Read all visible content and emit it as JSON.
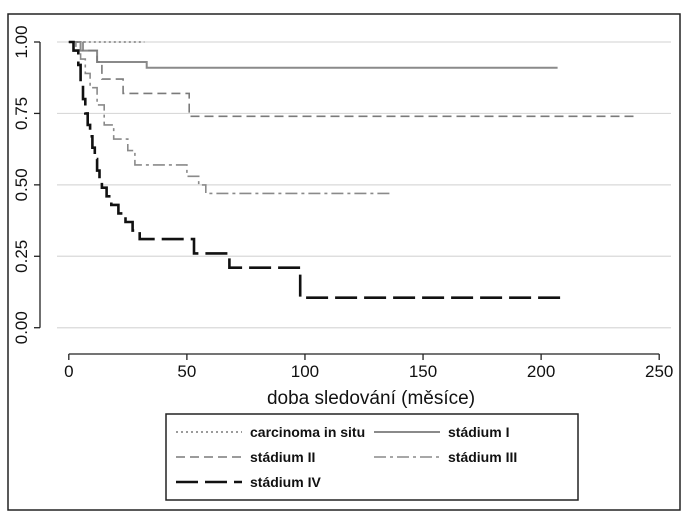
{
  "chart_data": {
    "type": "line",
    "step": true,
    "title": "",
    "xlabel": "doba sledování (měsíce)",
    "ylabel": "",
    "xlim": [
      -5,
      255
    ],
    "ylim": [
      -0.05,
      1.07
    ],
    "xticks": [
      0,
      50,
      100,
      150,
      200,
      250
    ],
    "yticks": [
      0.0,
      0.25,
      0.5,
      0.75,
      1.0
    ],
    "ytick_labels": [
      "0.00",
      "0.25",
      "0.50",
      "0.75",
      "1.00"
    ],
    "grid": "horizontal",
    "legend_position": "bottom",
    "background": "#ffffff",
    "series": [
      {
        "name": "carcinoma in situ",
        "style": "dotted",
        "color": "#9a9a9a",
        "points": [
          [
            0,
            1.0
          ],
          [
            32,
            1.0
          ]
        ]
      },
      {
        "name": "stádium I",
        "style": "solid",
        "color": "#8a8a8a",
        "points": [
          [
            0,
            1.0
          ],
          [
            5,
            1.0
          ],
          [
            5,
            0.97
          ],
          [
            12,
            0.97
          ],
          [
            12,
            0.93
          ],
          [
            33,
            0.93
          ],
          [
            33,
            0.91
          ],
          [
            207,
            0.91
          ]
        ]
      },
      {
        "name": "stádium II",
        "style": "dashed",
        "color": "#7a7a7a",
        "points": [
          [
            0,
            1.0
          ],
          [
            6,
            1.0
          ],
          [
            6,
            0.97
          ],
          [
            12,
            0.97
          ],
          [
            12,
            0.93
          ],
          [
            14,
            0.93
          ],
          [
            14,
            0.87
          ],
          [
            23,
            0.87
          ],
          [
            23,
            0.82
          ],
          [
            51,
            0.82
          ],
          [
            51,
            0.74
          ],
          [
            240,
            0.74
          ]
        ]
      },
      {
        "name": "stádium III",
        "style": "dashdot",
        "color": "#8a8a8a",
        "points": [
          [
            0,
            1.0
          ],
          [
            3,
            1.0
          ],
          [
            3,
            0.97
          ],
          [
            5,
            0.97
          ],
          [
            5,
            0.94
          ],
          [
            7,
            0.94
          ],
          [
            7,
            0.89
          ],
          [
            9,
            0.89
          ],
          [
            9,
            0.84
          ],
          [
            12,
            0.84
          ],
          [
            12,
            0.78
          ],
          [
            15,
            0.78
          ],
          [
            15,
            0.71
          ],
          [
            19,
            0.71
          ],
          [
            19,
            0.66
          ],
          [
            25,
            0.66
          ],
          [
            25,
            0.62
          ],
          [
            28,
            0.62
          ],
          [
            28,
            0.57
          ],
          [
            50,
            0.57
          ],
          [
            50,
            0.53
          ],
          [
            55,
            0.53
          ],
          [
            55,
            0.5
          ],
          [
            58,
            0.5
          ],
          [
            58,
            0.47
          ],
          [
            137,
            0.47
          ]
        ]
      },
      {
        "name": "stádium IV",
        "style": "longdash",
        "color": "#111111",
        "points": [
          [
            0,
            1.0
          ],
          [
            2,
            1.0
          ],
          [
            2,
            0.97
          ],
          [
            4,
            0.97
          ],
          [
            4,
            0.92
          ],
          [
            5,
            0.92
          ],
          [
            5,
            0.86
          ],
          [
            6,
            0.86
          ],
          [
            6,
            0.8
          ],
          [
            7,
            0.8
          ],
          [
            7,
            0.75
          ],
          [
            8,
            0.75
          ],
          [
            8,
            0.71
          ],
          [
            9,
            0.71
          ],
          [
            9,
            0.67
          ],
          [
            10,
            0.67
          ],
          [
            10,
            0.63
          ],
          [
            11,
            0.63
          ],
          [
            11,
            0.59
          ],
          [
            12,
            0.59
          ],
          [
            12,
            0.55
          ],
          [
            13,
            0.55
          ],
          [
            13,
            0.52
          ],
          [
            14,
            0.52
          ],
          [
            14,
            0.49
          ],
          [
            16,
            0.49
          ],
          [
            16,
            0.46
          ],
          [
            18,
            0.46
          ],
          [
            18,
            0.43
          ],
          [
            21,
            0.43
          ],
          [
            21,
            0.4
          ],
          [
            24,
            0.4
          ],
          [
            24,
            0.37
          ],
          [
            27,
            0.37
          ],
          [
            27,
            0.34
          ],
          [
            30,
            0.34
          ],
          [
            30,
            0.31
          ],
          [
            53,
            0.31
          ],
          [
            53,
            0.26
          ],
          [
            68,
            0.26
          ],
          [
            68,
            0.21
          ],
          [
            98,
            0.21
          ],
          [
            98,
            0.105
          ],
          [
            210,
            0.105
          ]
        ]
      }
    ]
  }
}
